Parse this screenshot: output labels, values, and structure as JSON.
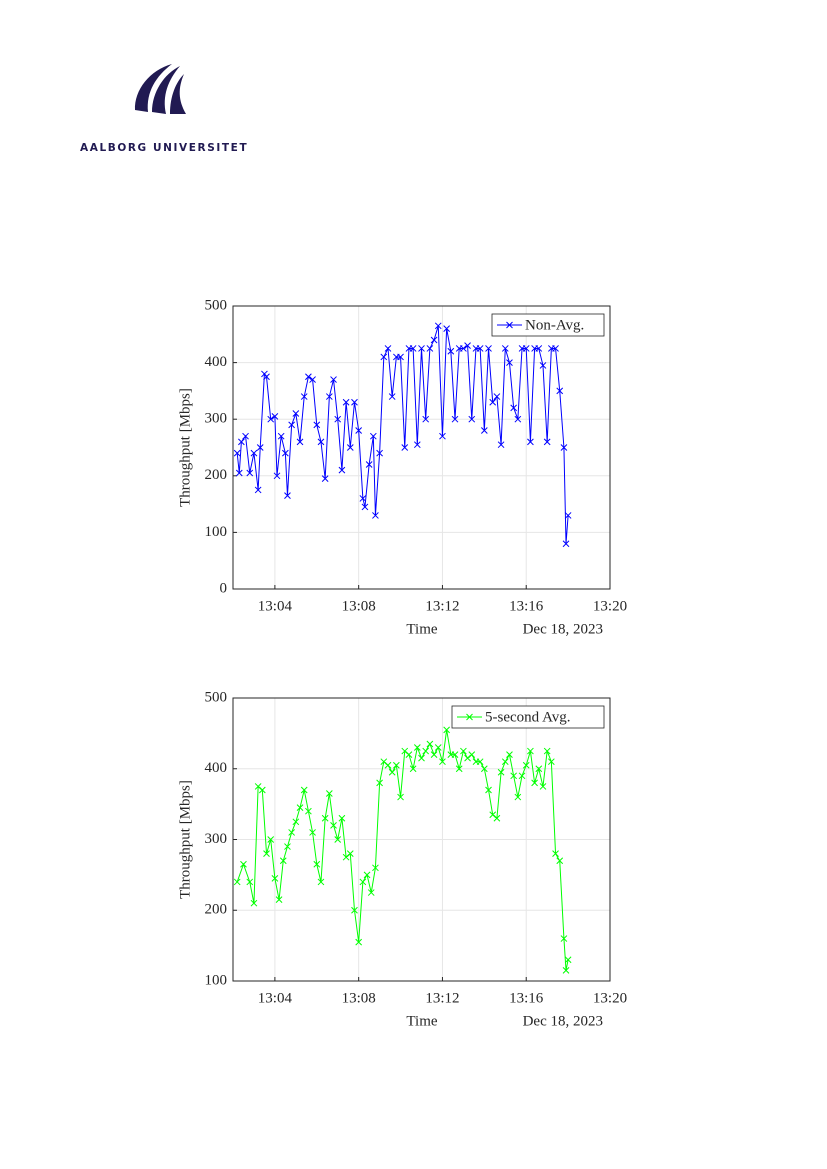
{
  "header": {
    "logo_text": "AALBORG UNIVERSITET"
  },
  "chart_data": [
    {
      "type": "line",
      "ylabel": "Throughput [Mbps]",
      "xlabel": "Time",
      "annotation": "Dec 18, 2023",
      "xlim": [
        782,
        800
      ],
      "xticks": [
        {
          "value": 784,
          "label": "13:04"
        },
        {
          "value": 788,
          "label": "13:08"
        },
        {
          "value": 792,
          "label": "13:12"
        },
        {
          "value": 796,
          "label": "13:16"
        },
        {
          "value": 800,
          "label": "13:20"
        }
      ],
      "ylim": [
        0,
        500
      ],
      "yticks": [
        0,
        100,
        200,
        300,
        400,
        500
      ],
      "grid": true,
      "legend": "upper right",
      "x": [
        782.2,
        782.3,
        782.4,
        782.6,
        782.8,
        783.0,
        783.2,
        783.3,
        783.5,
        783.6,
        783.8,
        784.0,
        784.1,
        784.3,
        784.5,
        784.6,
        784.8,
        785.0,
        785.2,
        785.4,
        785.6,
        785.8,
        786.0,
        786.2,
        786.4,
        786.6,
        786.8,
        787.0,
        787.2,
        787.4,
        787.6,
        787.8,
        788.0,
        788.2,
        788.3,
        788.5,
        788.7,
        788.8,
        789.0,
        789.2,
        789.4,
        789.6,
        789.8,
        790.0,
        790.2,
        790.4,
        790.6,
        790.8,
        791.0,
        791.2,
        791.4,
        791.6,
        791.8,
        792.0,
        792.2,
        792.4,
        792.6,
        792.8,
        793.0,
        793.2,
        793.4,
        793.6,
        793.8,
        794.0,
        794.2,
        794.4,
        794.6,
        794.8,
        795.0,
        795.2,
        795.4,
        795.6,
        795.8,
        796.0,
        796.2,
        796.4,
        796.6,
        796.8,
        797.0,
        797.2,
        797.4,
        797.6,
        797.8,
        797.9,
        798.0
      ],
      "series": [
        {
          "name": "Non-Avg.",
          "color": "#0000ff",
          "values": [
            240,
            205,
            260,
            270,
            205,
            240,
            175,
            250,
            380,
            375,
            300,
            305,
            200,
            270,
            240,
            165,
            290,
            310,
            260,
            340,
            375,
            370,
            290,
            260,
            195,
            340,
            370,
            300,
            210,
            330,
            250,
            330,
            280,
            160,
            145,
            220,
            270,
            130,
            240,
            410,
            425,
            340,
            410,
            410,
            250,
            425,
            425,
            255,
            425,
            300,
            425,
            440,
            465,
            270,
            460,
            420,
            300,
            425,
            425,
            430,
            300,
            425,
            425,
            280,
            425,
            330,
            340,
            255,
            425,
            400,
            320,
            300,
            425,
            425,
            260,
            425,
            425,
            395,
            260,
            425,
            425,
            350,
            250,
            80,
            130
          ]
        }
      ]
    },
    {
      "type": "line",
      "ylabel": "Throughput [Mbps]",
      "xlabel": "Time",
      "annotation": "Dec 18, 2023",
      "xlim": [
        782,
        800
      ],
      "xticks": [
        {
          "value": 784,
          "label": "13:04"
        },
        {
          "value": 788,
          "label": "13:08"
        },
        {
          "value": 792,
          "label": "13:12"
        },
        {
          "value": 796,
          "label": "13:16"
        },
        {
          "value": 800,
          "label": "13:20"
        }
      ],
      "ylim": [
        100,
        500
      ],
      "yticks": [
        100,
        200,
        300,
        400,
        500
      ],
      "grid": true,
      "legend": "upper right",
      "x": [
        782.2,
        782.5,
        782.8,
        783.0,
        783.2,
        783.4,
        783.6,
        783.8,
        784.0,
        784.2,
        784.4,
        784.6,
        784.8,
        785.0,
        785.2,
        785.4,
        785.6,
        785.8,
        786.0,
        786.2,
        786.4,
        786.6,
        786.8,
        787.0,
        787.2,
        787.4,
        787.6,
        787.8,
        788.0,
        788.2,
        788.4,
        788.6,
        788.8,
        789.0,
        789.2,
        789.4,
        789.6,
        789.8,
        790.0,
        790.2,
        790.4,
        790.6,
        790.8,
        791.0,
        791.2,
        791.4,
        791.6,
        791.8,
        792.0,
        792.2,
        792.4,
        792.6,
        792.8,
        793.0,
        793.2,
        793.4,
        793.6,
        793.8,
        794.0,
        794.2,
        794.4,
        794.6,
        794.8,
        795.0,
        795.2,
        795.4,
        795.6,
        795.8,
        796.0,
        796.2,
        796.4,
        796.6,
        796.8,
        797.0,
        797.2,
        797.4,
        797.6,
        797.8,
        797.9,
        798.0
      ],
      "series": [
        {
          "name": "5-second Avg.",
          "color": "#00ff00",
          "values": [
            240,
            265,
            240,
            210,
            375,
            370,
            280,
            300,
            245,
            215,
            270,
            290,
            310,
            325,
            345,
            370,
            340,
            310,
            265,
            240,
            330,
            365,
            320,
            300,
            330,
            275,
            280,
            200,
            155,
            240,
            250,
            225,
            260,
            380,
            410,
            405,
            395,
            405,
            360,
            425,
            420,
            400,
            430,
            415,
            425,
            435,
            420,
            430,
            410,
            455,
            420,
            420,
            400,
            425,
            415,
            420,
            410,
            410,
            400,
            370,
            335,
            330,
            395,
            410,
            420,
            390,
            360,
            390,
            405,
            425,
            380,
            400,
            375,
            425,
            410,
            280,
            270,
            160,
            115,
            130
          ]
        }
      ]
    }
  ]
}
